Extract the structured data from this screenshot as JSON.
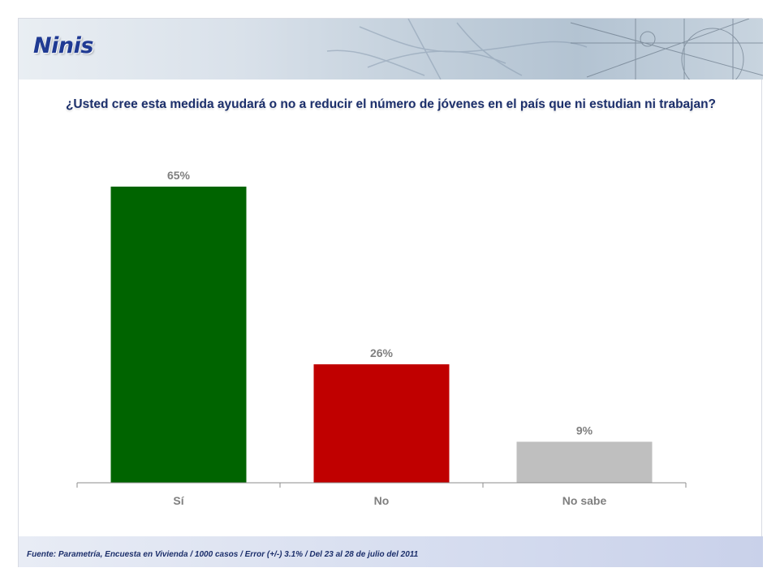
{
  "header": {
    "title": "Ninis"
  },
  "question": "¿Usted cree esta medida ayudará o no a reducir el número de jóvenes en el país que ni estudian ni trabajan?",
  "footer": {
    "source": "Fuente: Parametría, Encuesta en Vivienda / 1000 casos / Error (+/-) 3.1% / Del 23 al 28 de julio del 2011"
  },
  "chart_data": {
    "type": "bar",
    "title": "",
    "xlabel": "",
    "ylabel": "",
    "categories": [
      "Sí",
      "No",
      "No sabe"
    ],
    "values": [
      65,
      26,
      9
    ],
    "data_labels": [
      "65%",
      "26%",
      "9%"
    ],
    "colors": [
      "#006400",
      "#c00000",
      "#bfbfbf"
    ],
    "ylim": [
      0,
      65
    ],
    "grid": false,
    "legend": "none"
  }
}
